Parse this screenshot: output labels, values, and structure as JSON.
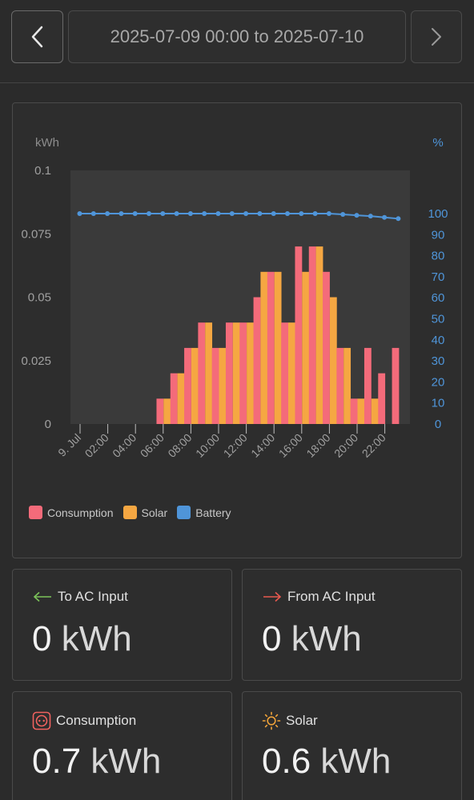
{
  "header": {
    "date_range": "2025-07-09 00:00 to 2025-07-10"
  },
  "chart_data": {
    "type": "bar",
    "ylabel_left": "kWh",
    "ylabel_right": "%",
    "ylim_left": [
      0,
      0.1
    ],
    "ylim_right": [
      0,
      100
    ],
    "yticks_left": [
      "0.1",
      "0.075",
      "0.05",
      "0.025",
      "0"
    ],
    "yticks_right": [
      "100",
      "90",
      "80",
      "70",
      "60",
      "50",
      "40",
      "30",
      "20",
      "10",
      "0"
    ],
    "xticks": [
      "9. Jul",
      "02:00",
      "04:00",
      "06:00",
      "08:00",
      "10:00",
      "12:00",
      "14:00",
      "16:00",
      "18:00",
      "20:00",
      "22:00"
    ],
    "categories": [
      "00:00",
      "01:00",
      "02:00",
      "03:00",
      "04:00",
      "05:00",
      "06:00",
      "07:00",
      "08:00",
      "09:00",
      "10:00",
      "11:00",
      "12:00",
      "13:00",
      "14:00",
      "15:00",
      "16:00",
      "17:00",
      "18:00",
      "19:00",
      "20:00",
      "21:00",
      "22:00",
      "23:00"
    ],
    "series": [
      {
        "name": "Consumption",
        "color": "#f46b7a",
        "values": [
          0,
          0,
          0,
          0,
          0,
          0,
          0.01,
          0.02,
          0.03,
          0.04,
          0.03,
          0.04,
          0.04,
          0.05,
          0.06,
          0.04,
          0.07,
          0.07,
          0.06,
          0.03,
          0.01,
          0.03,
          0.02,
          0.03
        ]
      },
      {
        "name": "Solar",
        "color": "#f5a742",
        "values": [
          0,
          0,
          0,
          0,
          0,
          0,
          0.01,
          0.02,
          0.03,
          0.04,
          0.03,
          0.04,
          0.04,
          0.06,
          0.06,
          0.04,
          0.06,
          0.07,
          0.05,
          0.03,
          0.01,
          0.01,
          0,
          0
        ]
      },
      {
        "name": "Battery",
        "color": "#4f95d9",
        "type": "line",
        "x": [
          0,
          1,
          2,
          3,
          4,
          5,
          6,
          7,
          8,
          9,
          10,
          11,
          12,
          13,
          14,
          15,
          16,
          17,
          18,
          19,
          20,
          21,
          22,
          23
        ],
        "values": [
          100,
          100,
          100,
          100,
          100,
          100,
          100,
          100,
          100,
          100,
          100,
          100,
          100,
          100,
          100,
          100,
          100,
          100,
          100,
          99.6,
          99.2,
          98.8,
          98.2,
          97.6
        ]
      }
    ],
    "grid": false,
    "legend_position": "bottom-left"
  },
  "legend": {
    "consumption": "Consumption",
    "solar": "Solar",
    "battery": "Battery"
  },
  "cards": {
    "to_ac": {
      "label": "To AC Input",
      "value": "0",
      "unit": "kWh"
    },
    "from_ac": {
      "label": "From AC Input",
      "value": "0",
      "unit": "kWh"
    },
    "consumption": {
      "label": "Consumption",
      "value": "0.7",
      "unit": "kWh"
    },
    "solar": {
      "label": "Solar",
      "value": "0.6",
      "unit": "kWh"
    }
  },
  "icons": {
    "prev": "chevron-left-icon",
    "next": "chevron-right-icon",
    "to_ac": "arrow-left-icon",
    "from_ac": "arrow-right-icon",
    "consumption": "socket-icon",
    "solar": "sun-icon"
  }
}
